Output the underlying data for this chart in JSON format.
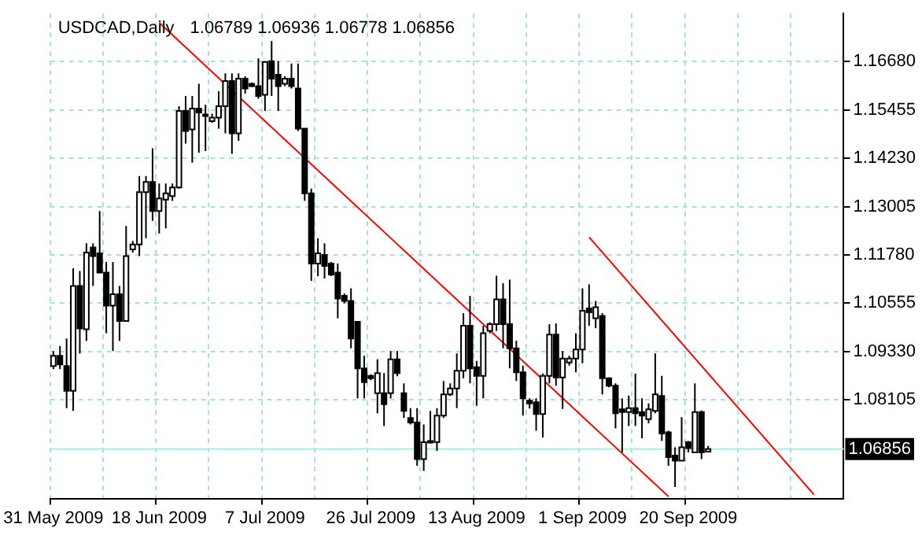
{
  "chart_data": {
    "type": "candlestick",
    "title": "USDCAD,Daily",
    "subtitle": "1.06789 1.06936 1.06778 1.06856",
    "categories": [
      "31 May 2009",
      null,
      null,
      null,
      null,
      null,
      null,
      null,
      null,
      null,
      null,
      null,
      null,
      null,
      null,
      null,
      "18 Jun 2009",
      null,
      null,
      null,
      null,
      null,
      null,
      null,
      null,
      null,
      null,
      null,
      null,
      null,
      null,
      null,
      "7 Jul 2009",
      null,
      null,
      null,
      null,
      null,
      null,
      null,
      null,
      null,
      null,
      null,
      null,
      null,
      null,
      null,
      "26 Jul 2009",
      null,
      null,
      null,
      null,
      null,
      null,
      null,
      null,
      null,
      null,
      null,
      null,
      null,
      null,
      null,
      "13 Aug 2009",
      null,
      null,
      null,
      null,
      null,
      null,
      null,
      null,
      null,
      null,
      null,
      null,
      null,
      null,
      null,
      "1 Sep 2009",
      null,
      null,
      null,
      null,
      null,
      null,
      null,
      null,
      null,
      null,
      null,
      null,
      null,
      null,
      null,
      "20 Sep 2009",
      null,
      null,
      null,
      null,
      null,
      null,
      null,
      null,
      null,
      null,
      null,
      null,
      null,
      null,
      null,
      null,
      null,
      null,
      null,
      null,
      null,
      null,
      null
    ],
    "ohlc": [
      [
        1.0896,
        1.0934,
        1.0888,
        1.0922
      ],
      [
        1.0922,
        1.0947,
        1.0888,
        1.09
      ],
      [
        1.0896,
        1.0966,
        1.0789,
        1.0833
      ],
      [
        1.0833,
        1.1144,
        1.0782,
        1.1099
      ],
      [
        1.1099,
        1.1137,
        1.0928,
        1.0991
      ],
      [
        1.0989,
        1.1207,
        1.096,
        1.1184
      ],
      [
        1.1197,
        1.1207,
        1.1099,
        1.1175
      ],
      [
        1.1182,
        1.1289,
        1.1133,
        1.1133
      ],
      [
        1.1133,
        1.116,
        1.0979,
        1.1049
      ],
      [
        1.1049,
        1.116,
        1.0934,
        1.1078
      ],
      [
        1.1078,
        1.1099,
        1.096,
        1.101
      ],
      [
        1.101,
        1.1251,
        1.101,
        1.1175
      ],
      [
        1.1192,
        1.1213,
        1.1184,
        1.1204
      ],
      [
        1.1204,
        1.1378,
        1.1175,
        1.1337
      ],
      [
        1.1337,
        1.1378,
        1.122,
        1.1363
      ],
      [
        1.1363,
        1.1448,
        1.1264,
        1.1289
      ],
      [
        1.1289,
        1.1359,
        1.1232,
        1.1321
      ],
      [
        1.1318,
        1.1359,
        1.1245,
        1.1334
      ],
      [
        1.1327,
        1.1359,
        1.1315,
        1.1349
      ],
      [
        1.1349,
        1.1555,
        1.1346,
        1.1543
      ],
      [
        1.1543,
        1.1581,
        1.146,
        1.1492
      ],
      [
        1.1496,
        1.1581,
        1.1412,
        1.1549
      ],
      [
        1.1549,
        1.1612,
        1.1437,
        1.1539
      ],
      [
        1.1534,
        1.1559,
        1.1441,
        1.153
      ],
      [
        1.1517,
        1.1536,
        1.1513,
        1.1526
      ],
      [
        1.1526,
        1.1593,
        1.1498,
        1.1555
      ],
      [
        1.1555,
        1.1638,
        1.1486,
        1.1619
      ],
      [
        1.1619,
        1.1638,
        1.1434,
        1.1486
      ],
      [
        1.1486,
        1.1638,
        1.1467,
        1.1625
      ],
      [
        1.1625,
        1.1631,
        1.1587,
        1.16
      ],
      [
        1.1612,
        1.1615,
        1.1604,
        1.1606
      ],
      [
        1.1606,
        1.1676,
        1.1574,
        1.1581
      ],
      [
        1.1584,
        1.1669,
        1.1543,
        1.1667
      ],
      [
        1.1669,
        1.172,
        1.1581,
        1.1625
      ],
      [
        1.1635,
        1.1669,
        1.1543,
        1.1606
      ],
      [
        1.1612,
        1.1631,
        1.1606,
        1.1625
      ],
      [
        1.1625,
        1.1663,
        1.16,
        1.1606
      ],
      [
        1.16,
        1.1663,
        1.1492,
        1.1498
      ],
      [
        1.1498,
        1.1498,
        1.1315,
        1.1334
      ],
      [
        1.1334,
        1.1346,
        1.1112,
        1.1156
      ],
      [
        1.1156,
        1.122,
        1.1124,
        1.1182
      ],
      [
        1.1178,
        1.1207,
        1.1118,
        1.115
      ],
      [
        1.1156,
        1.116,
        1.1124,
        1.1128
      ],
      [
        1.1133,
        1.1156,
        1.1017,
        1.1067
      ],
      [
        1.1074,
        1.108,
        1.1055,
        1.1061
      ],
      [
        1.1061,
        1.1093,
        1.0941,
        1.0966
      ],
      [
        1.1008,
        1.101,
        1.0814,
        1.089
      ],
      [
        1.089,
        1.0922,
        1.0814,
        1.0855
      ],
      [
        1.0871,
        1.0875,
        1.086,
        1.0865
      ],
      [
        1.0827,
        1.0913,
        1.0776,
        1.0878
      ],
      [
        1.0827,
        1.0878,
        1.0744,
        1.0799
      ],
      [
        1.0827,
        1.0934,
        1.0814,
        1.0913
      ],
      [
        1.0913,
        1.0934,
        1.087,
        1.0878
      ],
      [
        1.0827,
        1.0852,
        1.0764,
        1.0782
      ],
      [
        1.0764,
        1.0789,
        1.0748,
        1.0753
      ],
      [
        1.0753,
        1.0789,
        1.0643,
        1.066
      ],
      [
        1.066,
        1.0748,
        1.063,
        1.0703
      ],
      [
        1.0706,
        1.0782,
        1.07,
        1.0703
      ],
      [
        1.0703,
        1.0789,
        1.0681,
        1.077
      ],
      [
        1.077,
        1.0858,
        1.0764,
        1.0824
      ],
      [
        1.0824,
        1.0852,
        1.082,
        1.0839
      ],
      [
        1.0839,
        1.0928,
        1.0789,
        1.0884
      ],
      [
        1.0884,
        1.103,
        1.0865,
        1.0998
      ],
      [
        1.0998,
        1.1074,
        1.0852,
        1.089
      ],
      [
        1.0893,
        1.0909,
        1.0795,
        1.0871
      ],
      [
        1.0871,
        1.0998,
        1.0814,
        1.0979
      ],
      [
        1.0985,
        1.1007,
        1.0979,
        1.1002
      ],
      [
        1.1002,
        1.1125,
        1.0985,
        1.1065
      ],
      [
        1.1065,
        1.1106,
        1.0941,
        1.1002
      ],
      [
        1.1002,
        1.1115,
        1.089,
        1.0941
      ],
      [
        1.0941,
        1.096,
        1.0858,
        1.088
      ],
      [
        1.088,
        1.0897,
        1.077,
        1.0814
      ],
      [
        1.0808,
        1.0814,
        1.0788,
        1.0801
      ],
      [
        1.0804,
        1.0814,
        1.0732,
        1.0774
      ],
      [
        1.0774,
        1.0877,
        1.0715,
        1.0871
      ],
      [
        1.0871,
        1.1002,
        1.0852,
        1.0976
      ],
      [
        1.0976,
        1.1004,
        1.0846,
        1.0867
      ],
      [
        1.0867,
        1.0934,
        1.0787,
        1.0915
      ],
      [
        1.0905,
        1.0922,
        1.0897,
        1.0915
      ],
      [
        1.0915,
        1.0979,
        1.088,
        1.0938
      ],
      [
        1.0938,
        1.1093,
        1.0903,
        1.1036
      ],
      [
        1.1042,
        1.1103,
        1.0998,
        1.1032
      ],
      [
        1.1017,
        1.1061,
        1.0992,
        1.1045
      ],
      [
        1.1023,
        1.103,
        1.0824,
        1.0865
      ],
      [
        1.0865,
        1.0867,
        1.0842,
        1.0846
      ],
      [
        1.0846,
        1.0852,
        1.0738,
        1.0776
      ],
      [
        1.0786,
        1.0814,
        1.0677,
        1.0779
      ],
      [
        1.0779,
        1.0821,
        1.0744,
        1.0789
      ],
      [
        1.0789,
        1.0877,
        1.0744,
        1.0776
      ],
      [
        1.0779,
        1.0814,
        1.0713,
        1.077
      ],
      [
        1.0761,
        1.0801,
        1.0751,
        1.0786
      ],
      [
        1.0782,
        1.0928,
        1.0776,
        1.0824
      ],
      [
        1.082,
        1.0871,
        1.0706,
        1.0725
      ],
      [
        1.0728,
        1.0732,
        1.0643,
        1.0665
      ],
      [
        1.0669,
        1.069,
        1.0589,
        1.0656
      ],
      [
        1.0656,
        1.0766,
        1.0656,
        1.069
      ],
      [
        1.0703,
        1.0706,
        1.0677,
        1.0688
      ],
      [
        1.0677,
        1.0852,
        1.0677,
        1.0779
      ],
      [
        1.0779,
        1.0783,
        1.066,
        1.0677
      ],
      [
        1.06789,
        1.06936,
        1.06778,
        1.06856
      ],
      null,
      null,
      null,
      null,
      null,
      null,
      null,
      null,
      null,
      null,
      null,
      null,
      null,
      null,
      null,
      null,
      null,
      null,
      null,
      null
    ],
    "series": [
      {
        "type": "line",
        "color": "#ff0000",
        "values": [
          null,
          null,
          null,
          null,
          null,
          null,
          null,
          null,
          null,
          null,
          null,
          null,
          null,
          null,
          null,
          null,
          1.1767,
          null,
          null,
          null,
          null,
          null,
          null,
          null,
          null,
          null,
          null,
          null,
          null,
          null,
          null,
          null,
          null,
          null,
          null,
          null,
          null,
          null,
          null,
          null,
          null,
          null,
          null,
          null,
          null,
          null,
          null,
          null,
          null,
          null,
          null,
          null,
          null,
          null,
          null,
          null,
          null,
          null,
          null,
          null,
          null,
          null,
          null,
          null,
          null,
          null,
          null,
          null,
          null,
          null,
          null,
          null,
          null,
          null,
          null,
          null,
          null,
          null,
          null,
          null,
          null,
          null,
          null,
          null,
          null,
          null,
          null,
          null,
          null,
          null,
          null,
          null,
          null,
          1.0565,
          null,
          null,
          null,
          null,
          null,
          null,
          null,
          null,
          null,
          null,
          null,
          null,
          null,
          null,
          null,
          null,
          null,
          null,
          null,
          null,
          null,
          null,
          null,
          null,
          null,
          null
        ]
      },
      {
        "type": "line",
        "color": "#ff0000",
        "values": [
          null,
          null,
          null,
          null,
          null,
          null,
          null,
          null,
          null,
          null,
          null,
          null,
          null,
          null,
          null,
          null,
          null,
          null,
          null,
          null,
          null,
          null,
          null,
          null,
          null,
          null,
          null,
          null,
          null,
          null,
          null,
          null,
          null,
          null,
          null,
          null,
          null,
          null,
          null,
          null,
          null,
          null,
          null,
          null,
          null,
          null,
          null,
          null,
          null,
          null,
          null,
          null,
          null,
          null,
          null,
          null,
          null,
          null,
          null,
          null,
          null,
          null,
          null,
          null,
          null,
          null,
          null,
          null,
          null,
          null,
          null,
          null,
          null,
          null,
          null,
          null,
          null,
          null,
          null,
          null,
          null,
          1.1223,
          null,
          null,
          null,
          null,
          null,
          null,
          null,
          null,
          null,
          null,
          null,
          null,
          null,
          null,
          null,
          null,
          null,
          null,
          null,
          null,
          null,
          null,
          null,
          null,
          null,
          null,
          null,
          null,
          null,
          null,
          null,
          null,
          null,
          1.057,
          null,
          null,
          null,
          null
        ]
      }
    ],
    "ylim": [
      1.056,
      1.179
    ],
    "yticks": [
      {
        "value": 1.08105,
        "label": "1.08105"
      },
      {
        "value": 1.0933,
        "label": "1.09330"
      },
      {
        "value": 1.10555,
        "label": "1.10555"
      },
      {
        "value": 1.1178,
        "label": "1.11780"
      },
      {
        "value": 1.13005,
        "label": "1.13005"
      },
      {
        "value": 1.1423,
        "label": "1.14230"
      },
      {
        "value": 1.15455,
        "label": "1.15455"
      },
      {
        "value": 1.1668,
        "label": "1.16680"
      }
    ],
    "ref_lines": [
      {
        "axis": "y",
        "value": 1.06856,
        "label": "1.06856",
        "color": "#a8ecec"
      }
    ],
    "grid": true
  }
}
